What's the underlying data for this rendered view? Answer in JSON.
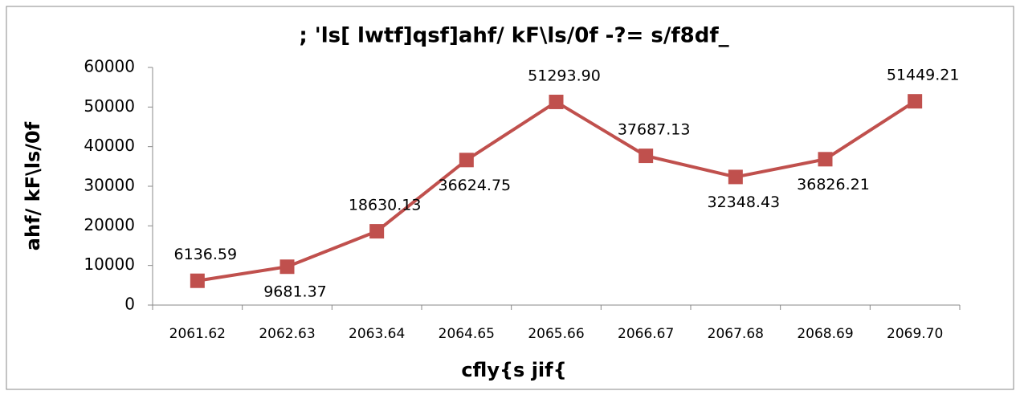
{
  "chart_data": {
    "type": "line",
    "title": "; 'ls[ lwtf]qsf]ahf/ kF\\ls/0f -?= s/f8df_",
    "x_label": "cfly{s jif{",
    "y_label": "ahf/ kF\\ls/0f",
    "categories": [
      "2061.62",
      "2062.63",
      "2063.64",
      "2064.65",
      "2065.66",
      "2066.67",
      "2067.68",
      "2068.69",
      "2069.70"
    ],
    "series": [
      {
        "name": "ahf/ kF\\ls/0f",
        "color": "#c0504d",
        "values": [
          6136.59,
          9681.37,
          18630.13,
          36624.75,
          51293.9,
          37687.13,
          32348.43,
          36826.21,
          51449.21
        ],
        "value_labels": [
          "6136.59",
          "9681.37",
          "18630.13",
          "36624.75",
          "51293.90",
          "37687.13",
          "32348.43",
          "36826.21",
          "51449.21"
        ]
      }
    ],
    "ylim": [
      0,
      60000
    ],
    "yticks": [
      0,
      10000,
      20000,
      30000,
      40000,
      50000,
      60000
    ],
    "grid": false,
    "legend": false
  }
}
